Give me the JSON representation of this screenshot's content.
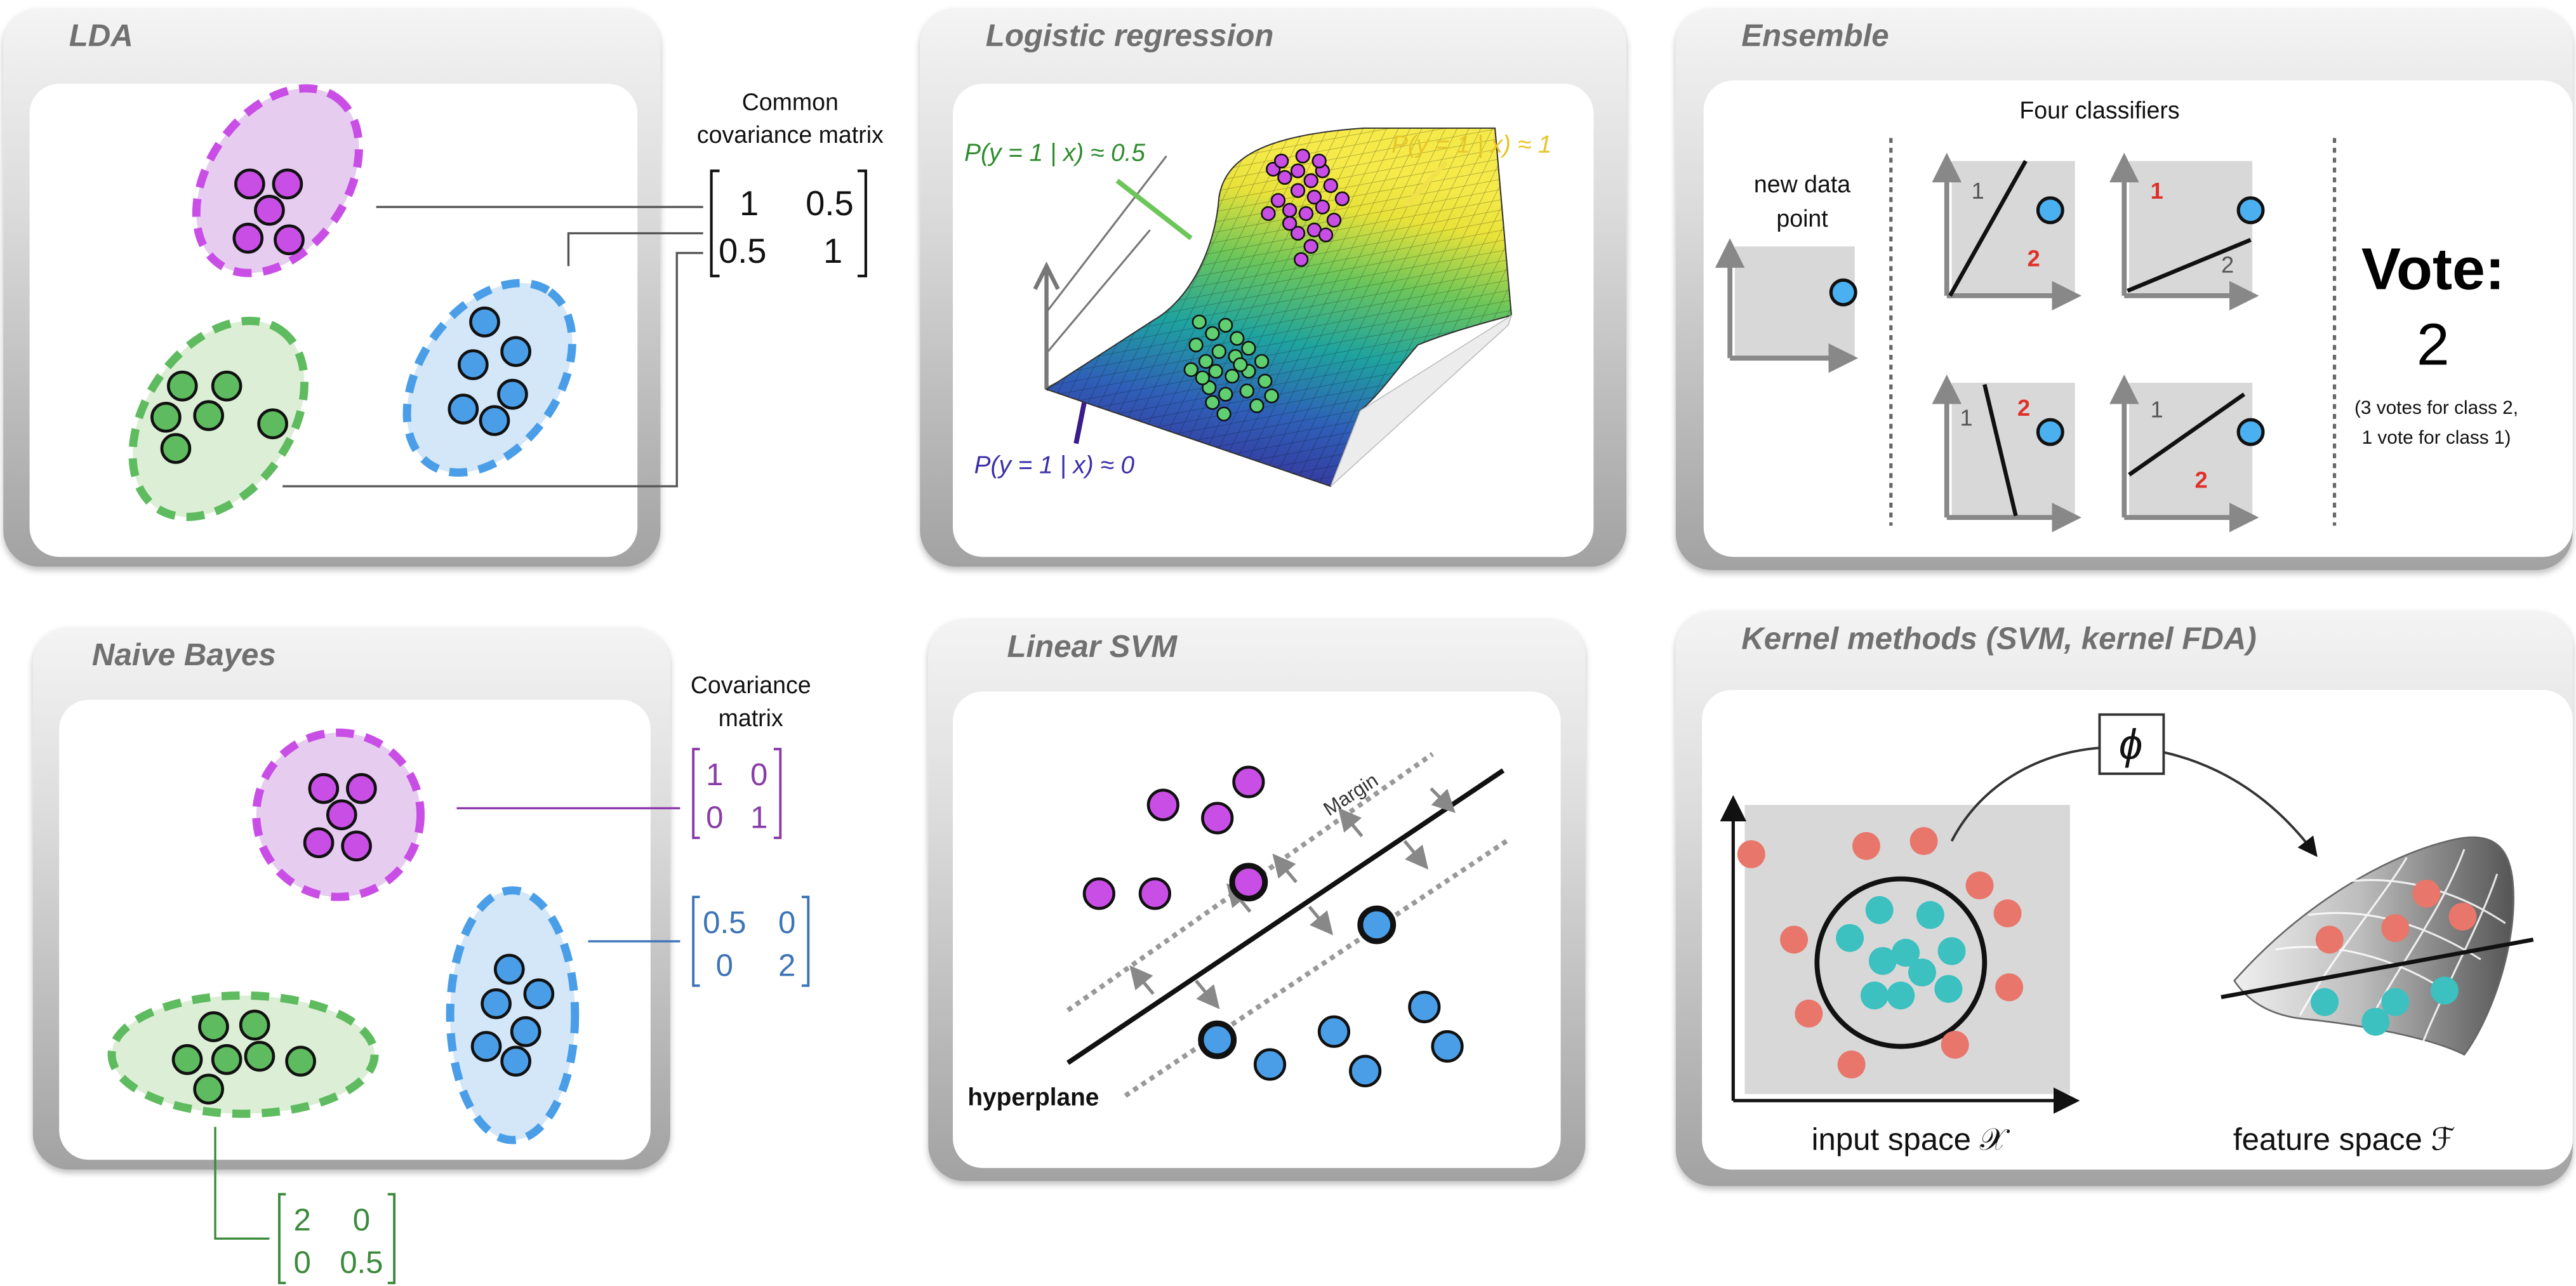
{
  "panels": {
    "lda": {
      "title": "LDA",
      "annotation_line1": "Common",
      "annotation_line2": "covariance matrix",
      "matrix": [
        [
          "1",
          "0.5"
        ],
        [
          "0.5",
          "1"
        ]
      ]
    },
    "logistic": {
      "title": "Logistic regression",
      "label_half": "P(y = 1 | x) ≈ 0.5",
      "label_one": "P(y = 1 | x) ≈ 1",
      "label_zero": "P(y = 1 | x) ≈ 0"
    },
    "ensemble": {
      "title": "Ensemble",
      "classifiers_label": "Four classifiers",
      "new_point_line1": "new data",
      "new_point_line2": "point",
      "vote_line1": "Vote:",
      "vote_line2": "2",
      "vote_note_line1": "(3 votes for class 2,",
      "vote_note_line2": "1 vote for class 1)",
      "class1": "1",
      "class2": "2"
    },
    "naive_bayes": {
      "title": "Naive Bayes",
      "annotation_line1": "Covariance",
      "annotation_line2": "matrix",
      "matrix_purple": [
        [
          "1",
          "0"
        ],
        [
          "0",
          "1"
        ]
      ],
      "matrix_blue": [
        [
          "0.5",
          "0"
        ],
        [
          "0",
          "2"
        ]
      ],
      "matrix_green": [
        [
          "2",
          "0"
        ],
        [
          "0",
          "0.5"
        ]
      ]
    },
    "svm": {
      "title": "Linear SVM",
      "margin_label": "Margin",
      "hyperplane_label": "hyperplane"
    },
    "kernel": {
      "title": "Kernel methods (SVM, kernel FDA)",
      "phi": "ϕ",
      "input_label": "input space 𝒳",
      "feature_label": "feature space ℱ"
    }
  },
  "colors": {
    "purple": "#c94ee6",
    "purple_fill": "#e6cdf0",
    "green": "#5fbb5f",
    "green_fill": "#dcefd6",
    "blue": "#4a9ee8",
    "blue_fill": "#d3e7f8",
    "red_point": "#e8766b",
    "teal_point": "#3cc0c0",
    "red_label": "#e0302a",
    "matrix_purple": "#8a3ca8",
    "matrix_blue": "#3d74b8",
    "matrix_green": "#3c8a3c"
  }
}
